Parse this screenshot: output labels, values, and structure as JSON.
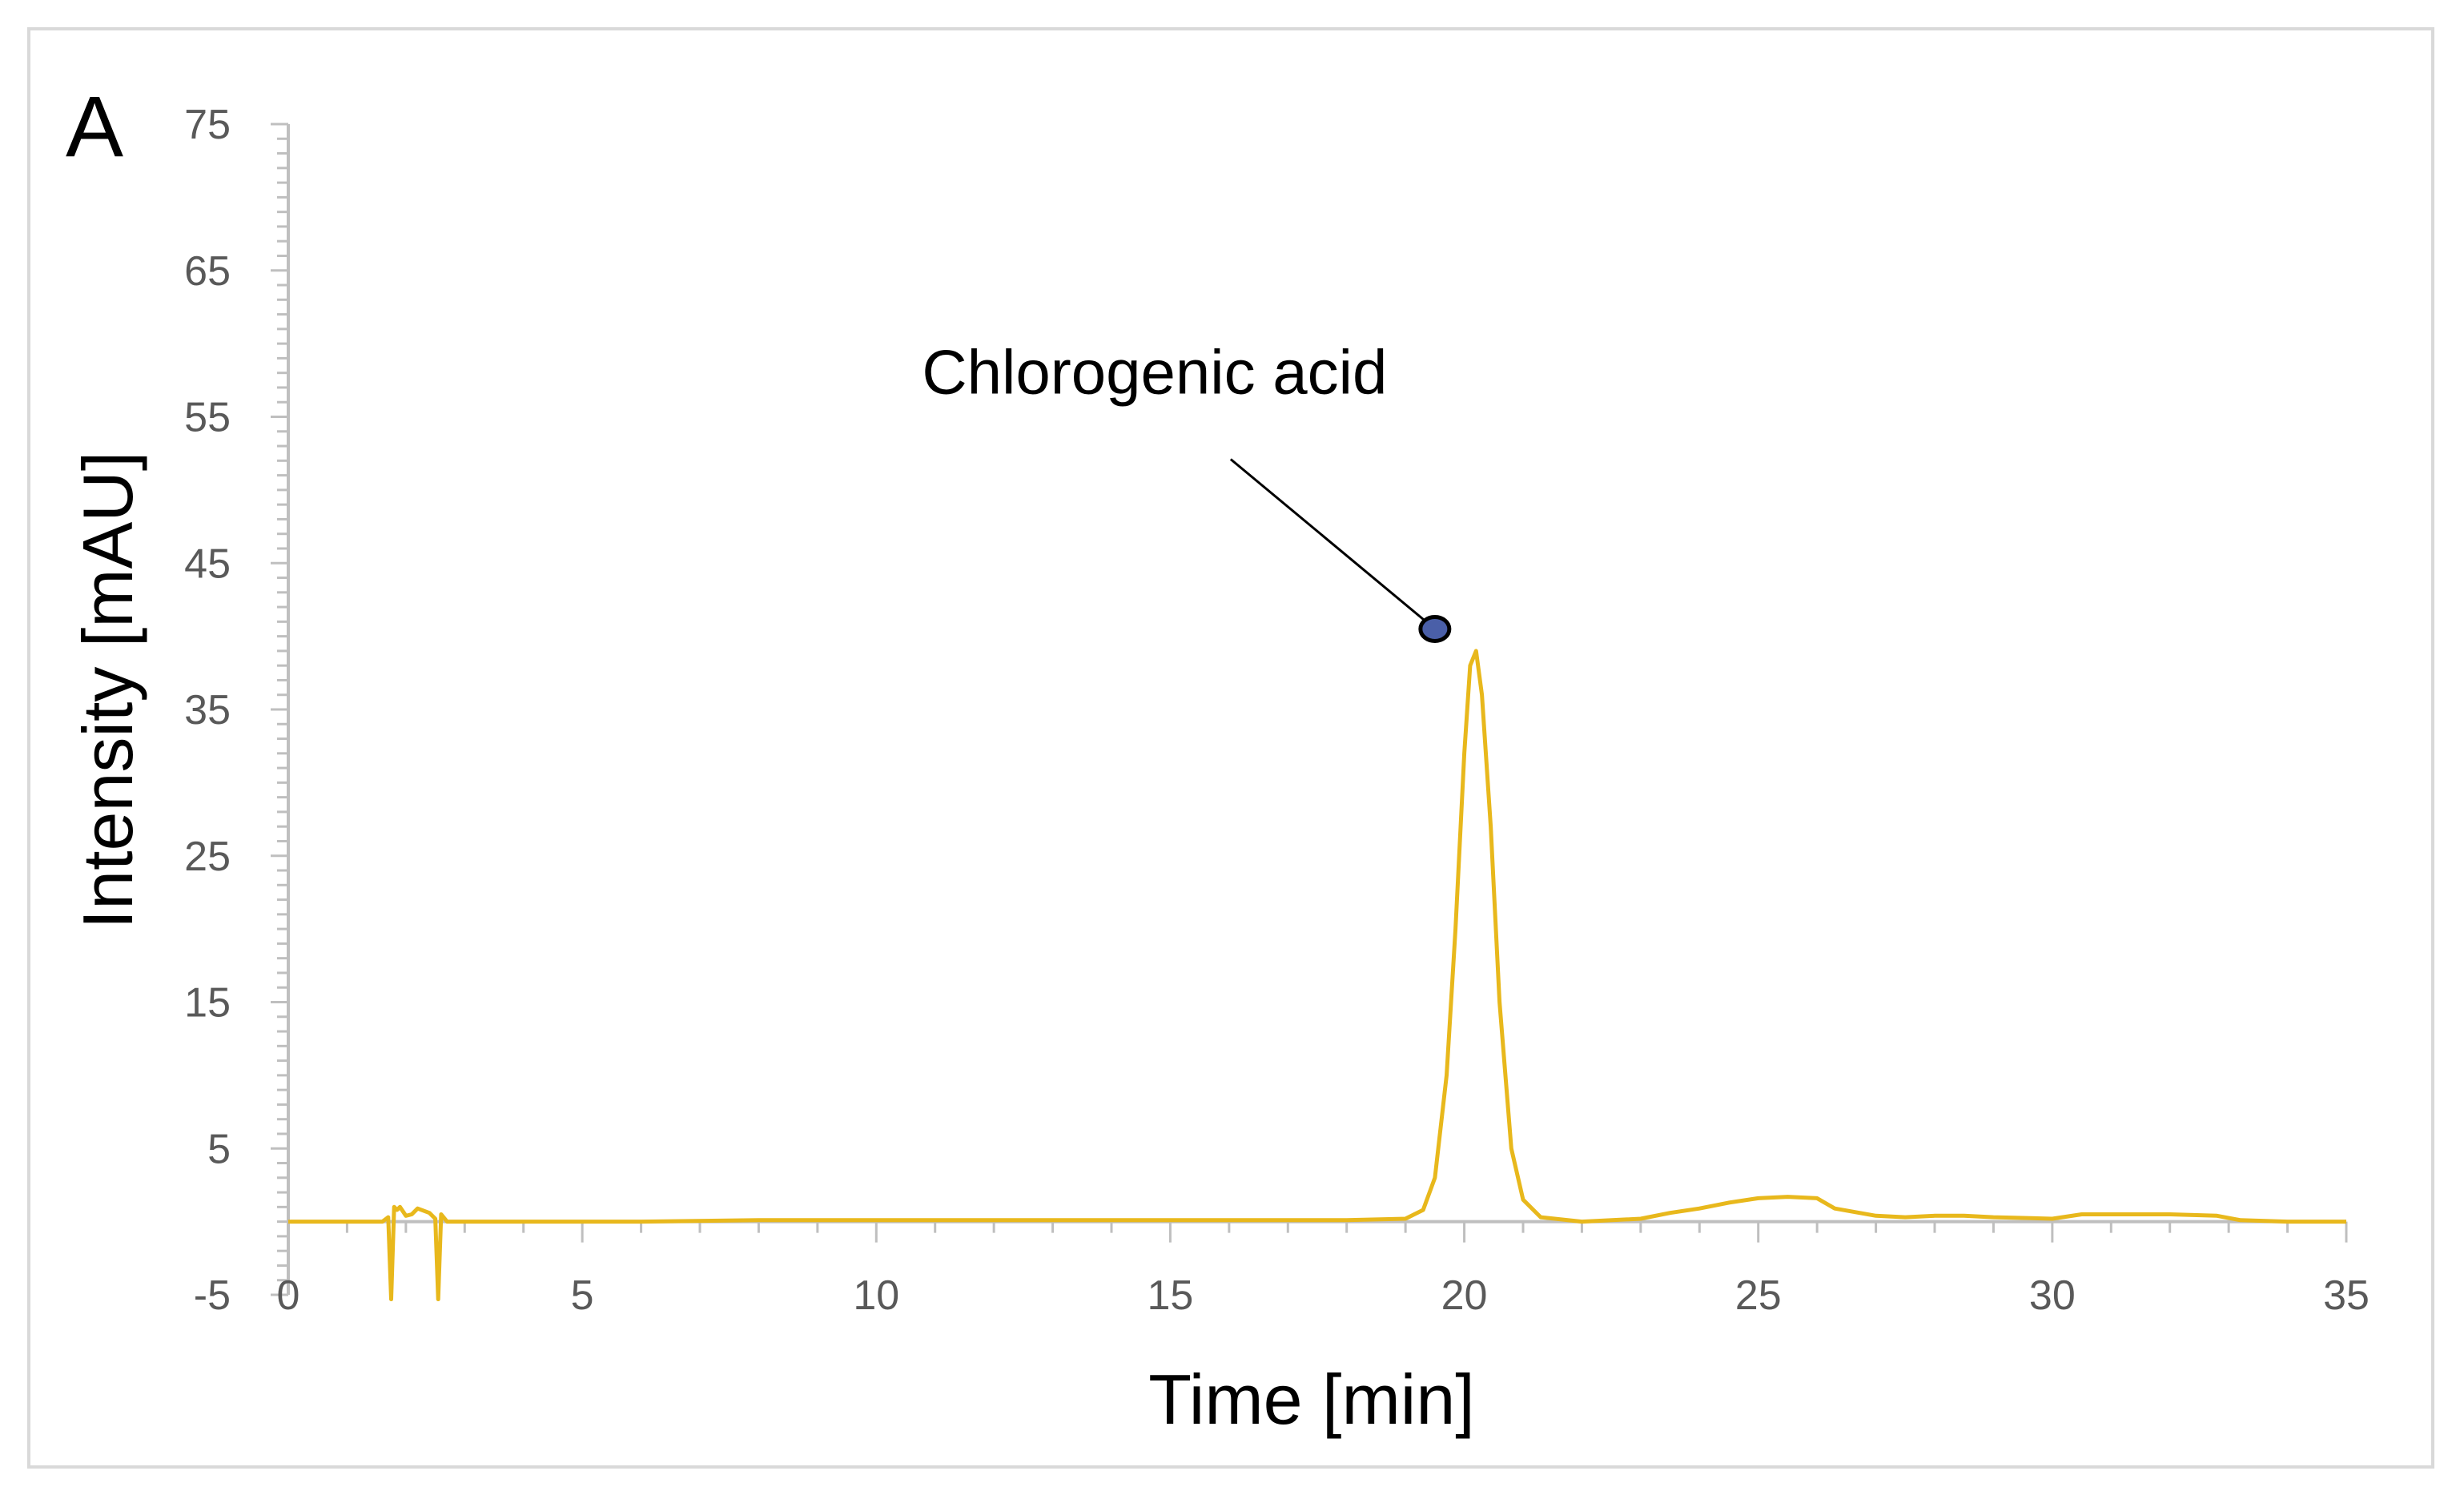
{
  "panel_label": "A",
  "colors": {
    "series": "#e8b81c",
    "axis": "#bfbfbf",
    "marker": "#4a5fa8"
  },
  "chart_data": {
    "type": "line",
    "xlabel": "Time [min]",
    "ylabel": "Intensity [mAU]",
    "xlim": [
      0,
      35
    ],
    "ylim": [
      -5,
      75
    ],
    "x_ticks": [
      0,
      5,
      10,
      15,
      20,
      25,
      30,
      35
    ],
    "y_ticks": [
      -5,
      5,
      15,
      25,
      35,
      45,
      55,
      65,
      75
    ],
    "grid": false,
    "series": [
      {
        "x": [
          0,
          1.6,
          1.7,
          1.75,
          1.8,
          1.85,
          1.9,
          2.0,
          2.1,
          2.2,
          2.4,
          2.5,
          2.55,
          2.6,
          2.7,
          3,
          6,
          8,
          9,
          10,
          12,
          15,
          18,
          19,
          19.3,
          19.5,
          19.7,
          19.85,
          20.0,
          20.1,
          20.2,
          20.3,
          20.45,
          20.6,
          20.8,
          21.0,
          21.3,
          22,
          23,
          23.5,
          24,
          24.5,
          25,
          25.5,
          26,
          26.3,
          27,
          27.5,
          28,
          28.5,
          29,
          30,
          30.5,
          31,
          32,
          32.8,
          33.2,
          34,
          35
        ],
        "y": [
          0,
          0,
          0.3,
          -5.3,
          1.0,
          0.8,
          1.0,
          0.4,
          0.5,
          0.9,
          0.6,
          0.2,
          -5.3,
          0.5,
          0,
          0,
          0,
          0.1,
          0.1,
          0.1,
          0.1,
          0.1,
          0.1,
          0.2,
          0.8,
          3,
          10,
          20,
          32,
          38,
          39,
          36,
          27,
          15,
          5,
          1.5,
          0.3,
          0,
          0.2,
          0.6,
          0.9,
          1.3,
          1.6,
          1.7,
          1.6,
          0.9,
          0.4,
          0.3,
          0.4,
          0.4,
          0.3,
          0.2,
          0.5,
          0.5,
          0.5,
          0.4,
          0.1,
          0,
          0
        ]
      }
    ],
    "annotations": [
      {
        "text": "Chlorogenic acid",
        "x": 19.5,
        "y": 40.5
      }
    ]
  }
}
